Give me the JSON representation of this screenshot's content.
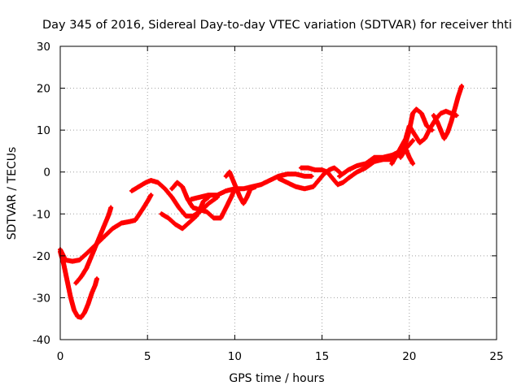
{
  "chart_data": {
    "type": "scatter",
    "title": "Day 345 of 2016, Sidereal Day-to-day VTEC variation (SDTVAR) for receiver thti",
    "xlabel": "GPS time / hours",
    "ylabel": "SDTVAR / TECUs",
    "xlim": [
      0,
      25
    ],
    "ylim": [
      -40,
      30
    ],
    "xticks": [
      0,
      5,
      10,
      15,
      20,
      25
    ],
    "yticks": [
      -40,
      -30,
      -20,
      -10,
      0,
      10,
      20,
      30
    ],
    "grid": true,
    "legend": "none",
    "marker": "plus",
    "color": "#ff0000",
    "series": [
      {
        "name": "trace-1",
        "points": [
          [
            0.0,
            -18.5
          ],
          [
            0.3,
            -21
          ],
          [
            0.7,
            -21.3
          ],
          [
            1.1,
            -21
          ],
          [
            1.5,
            -19.5
          ],
          [
            2.0,
            -17.5
          ],
          [
            2.5,
            -15.5
          ],
          [
            3.0,
            -13.5
          ],
          [
            3.5,
            -12.2
          ],
          [
            4.0,
            -11.8
          ],
          [
            4.3,
            -11.5
          ],
          [
            4.7,
            -9
          ],
          [
            5.0,
            -7
          ],
          [
            5.2,
            -5.5
          ]
        ]
      },
      {
        "name": "trace-2",
        "points": [
          [
            0.0,
            -19
          ],
          [
            0.2,
            -22
          ],
          [
            0.4,
            -26
          ],
          [
            0.6,
            -30
          ],
          [
            0.8,
            -33
          ],
          [
            1.0,
            -34.5
          ],
          [
            1.2,
            -34.7
          ],
          [
            1.4,
            -33.5
          ],
          [
            1.6,
            -31.5
          ],
          [
            1.8,
            -29
          ],
          [
            2.0,
            -27
          ],
          [
            2.1,
            -25.5
          ]
        ]
      },
      {
        "name": "trace-3",
        "points": [
          [
            0.9,
            -26.5
          ],
          [
            1.2,
            -25
          ],
          [
            1.5,
            -23
          ],
          [
            1.7,
            -21
          ],
          [
            2.0,
            -18
          ],
          [
            2.3,
            -15
          ],
          [
            2.6,
            -12
          ],
          [
            2.8,
            -10
          ],
          [
            2.9,
            -8.5
          ]
        ]
      },
      {
        "name": "trace-4",
        "points": [
          [
            4.1,
            -4.5
          ],
          [
            4.5,
            -3.5
          ],
          [
            4.9,
            -2.5
          ],
          [
            5.2,
            -2
          ],
          [
            5.6,
            -2.5
          ],
          [
            6.0,
            -4
          ],
          [
            6.4,
            -6
          ],
          [
            6.8,
            -8.5
          ],
          [
            7.2,
            -10.5
          ],
          [
            7.6,
            -10.5
          ],
          [
            8.0,
            -9.5
          ],
          [
            8.5,
            -7.5
          ],
          [
            9.0,
            -6
          ]
        ]
      },
      {
        "name": "trace-5",
        "points": [
          [
            5.8,
            -10
          ],
          [
            6.2,
            -11
          ],
          [
            6.6,
            -12.5
          ],
          [
            7.0,
            -13.5
          ],
          [
            7.4,
            -12
          ],
          [
            7.8,
            -10.5
          ],
          [
            8.0,
            -9
          ],
          [
            8.2,
            -7
          ],
          [
            8.5,
            -6
          ]
        ]
      },
      {
        "name": "trace-6",
        "points": [
          [
            6.4,
            -4
          ],
          [
            6.7,
            -2.5
          ],
          [
            7.0,
            -3.5
          ],
          [
            7.3,
            -6.5
          ],
          [
            7.6,
            -8.5
          ],
          [
            8.0,
            -9
          ],
          [
            8.4,
            -9.5
          ],
          [
            8.8,
            -11
          ],
          [
            9.2,
            -11
          ],
          [
            9.5,
            -8.5
          ],
          [
            9.8,
            -6
          ],
          [
            10.0,
            -4
          ]
        ]
      },
      {
        "name": "trace-7",
        "points": [
          [
            7.5,
            -6.5
          ],
          [
            8.0,
            -6
          ],
          [
            8.5,
            -5.5
          ],
          [
            9.0,
            -5.5
          ],
          [
            9.5,
            -4.5
          ],
          [
            10.0,
            -4
          ],
          [
            10.5,
            -4
          ],
          [
            11.0,
            -3.5
          ],
          [
            11.5,
            -3
          ],
          [
            12.0,
            -2
          ],
          [
            12.5,
            -1
          ],
          [
            13.0,
            -0.5
          ],
          [
            13.5,
            -0.5
          ],
          [
            14.0,
            -1
          ],
          [
            14.4,
            -1
          ]
        ]
      },
      {
        "name": "trace-8",
        "points": [
          [
            9.5,
            -1
          ],
          [
            9.7,
            0
          ],
          [
            9.9,
            -2
          ],
          [
            10.1,
            -4
          ],
          [
            10.3,
            -6
          ],
          [
            10.5,
            -7.5
          ],
          [
            10.7,
            -6
          ],
          [
            10.9,
            -4
          ],
          [
            11.2,
            -3.5
          ]
        ]
      },
      {
        "name": "trace-9",
        "points": [
          [
            12.5,
            -1.5
          ],
          [
            13.0,
            -2.5
          ],
          [
            13.5,
            -3.5
          ],
          [
            14.0,
            -4
          ],
          [
            14.5,
            -3.5
          ],
          [
            14.8,
            -2
          ],
          [
            15.1,
            -0.5
          ],
          [
            15.4,
            0.5
          ],
          [
            15.7,
            1
          ],
          [
            16.0,
            0
          ]
        ]
      },
      {
        "name": "trace-10",
        "points": [
          [
            13.8,
            1
          ],
          [
            14.2,
            1
          ],
          [
            14.6,
            0.5
          ],
          [
            15.0,
            0.5
          ],
          [
            15.3,
            0
          ],
          [
            15.6,
            -1.5
          ],
          [
            15.9,
            -3
          ],
          [
            16.2,
            -2.5
          ],
          [
            16.5,
            -1.5
          ],
          [
            17.0,
            0
          ],
          [
            17.5,
            1
          ],
          [
            18.0,
            2.5
          ],
          [
            18.5,
            3
          ],
          [
            19.0,
            3
          ],
          [
            19.5,
            4.5
          ],
          [
            20.0,
            6.5
          ],
          [
            20.2,
            7.5
          ]
        ]
      },
      {
        "name": "trace-11",
        "points": [
          [
            16.0,
            -1
          ],
          [
            16.5,
            0.5
          ],
          [
            17.0,
            1.5
          ],
          [
            17.5,
            2
          ],
          [
            18.0,
            3.5
          ],
          [
            18.5,
            3.5
          ],
          [
            19.0,
            4
          ],
          [
            19.5,
            5
          ],
          [
            19.8,
            7
          ],
          [
            20.0,
            10
          ],
          [
            20.2,
            14
          ],
          [
            20.4,
            15
          ],
          [
            20.7,
            14
          ],
          [
            21.0,
            11
          ],
          [
            21.3,
            10
          ]
        ]
      },
      {
        "name": "trace-12",
        "points": [
          [
            19.0,
            2
          ],
          [
            19.4,
            5
          ],
          [
            19.8,
            8
          ],
          [
            20.0,
            11
          ],
          [
            20.3,
            9
          ],
          [
            20.6,
            7
          ],
          [
            20.9,
            8
          ],
          [
            21.2,
            10.5
          ],
          [
            21.5,
            12.5
          ],
          [
            21.8,
            14
          ],
          [
            22.1,
            14.5
          ],
          [
            22.4,
            14
          ],
          [
            22.7,
            13.5
          ]
        ]
      },
      {
        "name": "trace-13",
        "points": [
          [
            19.5,
            3.5
          ],
          [
            19.8,
            5.5
          ],
          [
            20.0,
            3.5
          ],
          [
            20.2,
            2
          ]
        ]
      },
      {
        "name": "trace-14",
        "points": [
          [
            21.4,
            13.5
          ],
          [
            21.6,
            12
          ],
          [
            21.8,
            10
          ],
          [
            22.0,
            8
          ],
          [
            22.2,
            9.5
          ],
          [
            22.4,
            12
          ],
          [
            22.6,
            15
          ],
          [
            22.8,
            18
          ],
          [
            23.0,
            20.5
          ]
        ]
      }
    ]
  }
}
